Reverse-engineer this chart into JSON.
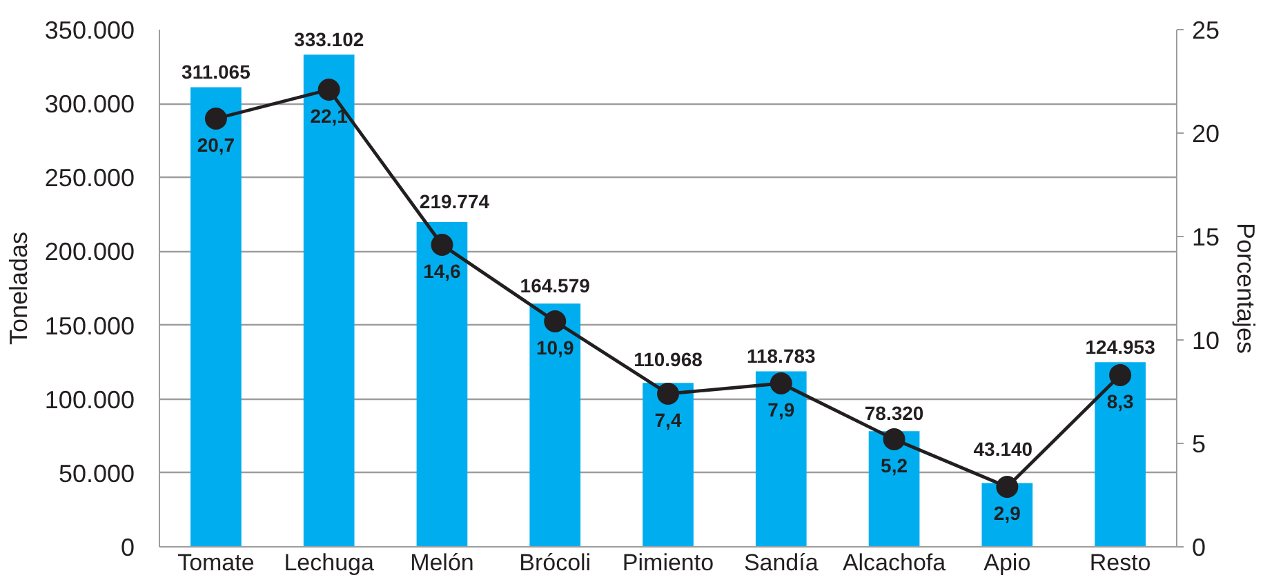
{
  "chart_data": {
    "type": "bar",
    "categories": [
      "Tomate",
      "Lechuga",
      "Melón",
      "Brócoli",
      "Pimiento",
      "Sandía",
      "Alcachofa",
      "Apio",
      "Resto"
    ],
    "ylabel": "Toneladas",
    "y2label": "Porcentajes",
    "ylim": [
      0,
      350000
    ],
    "yticks": [
      0,
      {
        "value": 50000,
        "label": "50.000"
      },
      {
        "value": 100000,
        "label": "100.000"
      },
      {
        "value": 150000,
        "label": "150.000"
      },
      {
        "value": 200000,
        "label": "200.000"
      },
      {
        "value": 250000,
        "label": "250.000"
      },
      {
        "value": 300000,
        "label": "300.000"
      },
      {
        "value": 350000,
        "label": "350.000"
      }
    ],
    "y2lim": [
      0,
      25
    ],
    "y2ticks": [
      0,
      5,
      10,
      15,
      20,
      25
    ],
    "grid": "y",
    "series": [
      {
        "color": "#00aeef",
        "values": [
          311065,
          333102,
          219774,
          164579,
          110968,
          118783,
          78320,
          43140,
          124953
        ],
        "value_labels": [
          "311.065",
          "333.102",
          "219.774",
          "164.579",
          "110.968",
          "118.783",
          "78.320",
          "43.140",
          "124.953"
        ]
      },
      {
        "type": "line",
        "axis": "y2",
        "color": "#231f20",
        "marker": "circle",
        "values": [
          20.7,
          22.1,
          14.6,
          10.9,
          7.4,
          7.9,
          5.2,
          2.9,
          8.3
        ],
        "value_labels": [
          "20,7",
          "22,1",
          "14,6",
          "10,9",
          "7,4",
          "7,9",
          "5,2",
          "2,9",
          "8,3"
        ]
      }
    ]
  }
}
